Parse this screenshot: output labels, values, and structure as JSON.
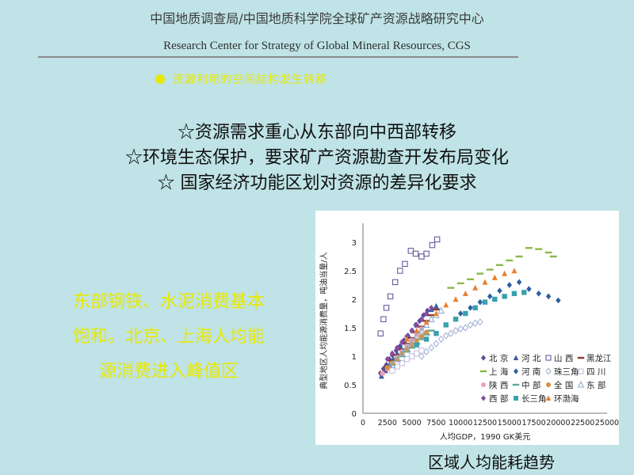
{
  "header": {
    "org_cn": "中国地质调查局/中国地质科学院全球矿产资源战略研究中心",
    "org_en": "Research Center for Strategy of Global Mineral Resources, CGS"
  },
  "topic": "资源利用的空间结构发生转移",
  "points": [
    "☆资源需求重心从东部向中西部转移",
    "☆环境生态保护，要求矿产资源勘查开发布局变化",
    "☆ 国家经济功能区划对资源的差异化要求"
  ],
  "left_note": [
    "东部钢铁、水泥消费基本",
    "饱和。北京、上海人均能",
    "源消费进入峰值区"
  ],
  "caption": "区域人均能耗趋势",
  "colors": {
    "background": "#bfe3e6",
    "yellow_text": "#e8e800"
  },
  "chart_data": {
    "type": "scatter",
    "xlabel": "人均GDP，1990 GK美元",
    "ylabel": "典型地区人均能源消费量，吨油当量/人",
    "xlim": [
      0,
      25000
    ],
    "ylim": [
      0,
      3.25
    ],
    "x_ticks": [
      0,
      2500,
      5000,
      7500,
      10000,
      12500,
      15000,
      17500,
      20000,
      22500,
      25000
    ],
    "y_ticks": [
      0,
      0.5,
      1,
      1.5,
      2,
      2.5,
      3
    ],
    "series": [
      {
        "name": "北 京",
        "marker": "diamond",
        "color": "#5a4a9a",
        "x": [
          1800,
          2100,
          2400,
          2700,
          3000,
          3400,
          3800,
          4200,
          4600,
          5000,
          5400,
          5800,
          6200,
          6600
        ],
        "y": [
          0.7,
          0.78,
          0.85,
          0.95,
          1.02,
          1.1,
          1.18,
          1.28,
          1.36,
          1.45,
          1.55,
          1.62,
          1.72,
          1.8
        ]
      },
      {
        "name": "河 北",
        "marker": "triangle",
        "color": "#3b5fa0",
        "x": [
          1900,
          2300,
          2700,
          3100,
          3500,
          3900,
          4300,
          4700,
          5100,
          5500,
          6000,
          6500,
          7000,
          7500
        ],
        "y": [
          0.65,
          0.75,
          0.85,
          0.95,
          1.05,
          1.15,
          1.25,
          1.35,
          1.45,
          1.55,
          1.65,
          1.75,
          1.82,
          1.88
        ]
      },
      {
        "name": "山 西",
        "marker": "square-open",
        "color": "#6a5aa0",
        "x": [
          1800,
          2100,
          2400,
          2800,
          3300,
          3800,
          4300,
          4900,
          5400,
          6000,
          6500,
          7100,
          7600
        ],
        "y": [
          1.4,
          1.65,
          1.85,
          2.05,
          2.3,
          2.5,
          2.62,
          2.85,
          2.8,
          2.75,
          2.8,
          2.95,
          3.05
        ]
      },
      {
        "name": "黑龙江",
        "marker": "dash",
        "color": "#8a3a30",
        "x": [
          2000,
          2500,
          3000,
          3500,
          4000,
          4500,
          5000,
          5500,
          6000,
          6500,
          7000,
          7500
        ],
        "y": [
          0.72,
          0.82,
          0.92,
          1.02,
          1.12,
          1.22,
          1.32,
          1.42,
          1.52,
          1.62,
          1.72,
          1.82
        ]
      },
      {
        "name": "上 海",
        "marker": "dash",
        "color": "#8bb84a",
        "x": [
          9000,
          10000,
          11000,
          12000,
          13000,
          14000,
          15000,
          16000,
          17000,
          18000,
          19000,
          19500
        ],
        "y": [
          2.2,
          2.28,
          2.35,
          2.45,
          2.52,
          2.6,
          2.68,
          2.75,
          2.9,
          2.88,
          2.82,
          2.75
        ]
      },
      {
        "name": "河 南",
        "marker": "diamond",
        "color": "#2d5fa0",
        "x": [
          10000,
          11000,
          12000,
          13000,
          14000,
          15000,
          16000,
          17000,
          18000,
          19000,
          20000
        ],
        "y": [
          1.75,
          1.85,
          1.95,
          2.05,
          2.15,
          2.25,
          2.3,
          2.18,
          2.1,
          2.05,
          1.98
        ]
      },
      {
        "name": "珠三角",
        "marker": "diamond-open",
        "color": "#a8b4d8",
        "x": [
          6000,
          6500,
          7000,
          7500,
          8000,
          8500,
          9000,
          9500,
          10000,
          10500,
          11000,
          11500,
          12000
        ],
        "y": [
          1.0,
          1.08,
          1.15,
          1.22,
          1.3,
          1.36,
          1.4,
          1.45,
          1.48,
          1.5,
          1.55,
          1.58,
          1.6
        ]
      },
      {
        "name": "四 川",
        "marker": "square-open",
        "color": "#c8c0e0",
        "x": [
          3000,
          3500,
          4000,
          4500,
          5000,
          5500,
          6000
        ],
        "y": [
          0.75,
          0.82,
          0.88,
          0.95,
          1.0,
          1.05,
          1.1
        ]
      },
      {
        "name": "陕 西",
        "marker": "dot",
        "color": "#e8a0c0",
        "x": [
          2000,
          2500,
          3000,
          3500,
          4000,
          4500,
          5000,
          5500,
          6000
        ],
        "y": [
          0.7,
          0.78,
          0.88,
          0.98,
          1.08,
          1.18,
          1.28,
          1.38,
          1.48
        ]
      },
      {
        "name": "中 部",
        "marker": "dash",
        "color": "#5aa8a0",
        "x": [
          3000,
          3500,
          4000,
          4500,
          5000,
          5500,
          6000,
          6500,
          7000
        ],
        "y": [
          0.85,
          0.92,
          1.0,
          1.08,
          1.15,
          1.22,
          1.3,
          1.38,
          1.45
        ]
      },
      {
        "name": "全 国",
        "marker": "dot",
        "color": "#d89040",
        "x": [
          2500,
          3000,
          3500,
          4000,
          4500,
          5000,
          5500,
          6000,
          6500
        ],
        "y": [
          0.8,
          0.88,
          0.95,
          1.05,
          1.12,
          1.2,
          1.28,
          1.35,
          1.42
        ]
      },
      {
        "name": "东 部",
        "marker": "triangle-open",
        "color": "#8aaed0",
        "x": [
          3000,
          3500,
          4000,
          4500,
          5000,
          5500,
          6000,
          6500,
          7000,
          7500,
          8000
        ],
        "y": [
          0.85,
          0.95,
          1.05,
          1.15,
          1.25,
          1.35,
          1.45,
          1.55,
          1.65,
          1.72,
          1.8
        ]
      },
      {
        "name": "西 部",
        "marker": "diamond",
        "color": "#8a4aa0",
        "x": [
          2500,
          3000,
          3500,
          4000,
          4500,
          5000,
          5500,
          6000,
          6500,
          7000
        ],
        "y": [
          0.95,
          1.05,
          1.15,
          1.25,
          1.35,
          1.45,
          1.55,
          1.65,
          1.75,
          1.85
        ]
      },
      {
        "name": "长三角",
        "marker": "square",
        "color": "#3aa0b0",
        "x": [
          5500,
          6500,
          7500,
          8500,
          9500,
          10500,
          11500,
          12500,
          13500,
          14500,
          15500,
          16500
        ],
        "y": [
          1.2,
          1.3,
          1.4,
          1.55,
          1.65,
          1.75,
          1.85,
          1.95,
          2.0,
          2.05,
          2.1,
          2.12
        ]
      },
      {
        "name": "环渤海",
        "marker": "triangle",
        "color": "#e88030",
        "x": [
          4500,
          5500,
          6500,
          7500,
          8500,
          9500,
          10500,
          11500,
          12500,
          13500,
          14500,
          15500
        ],
        "y": [
          1.3,
          1.45,
          1.6,
          1.75,
          1.9,
          2.0,
          2.1,
          2.2,
          2.3,
          2.38,
          2.45,
          2.5
        ]
      }
    ]
  }
}
